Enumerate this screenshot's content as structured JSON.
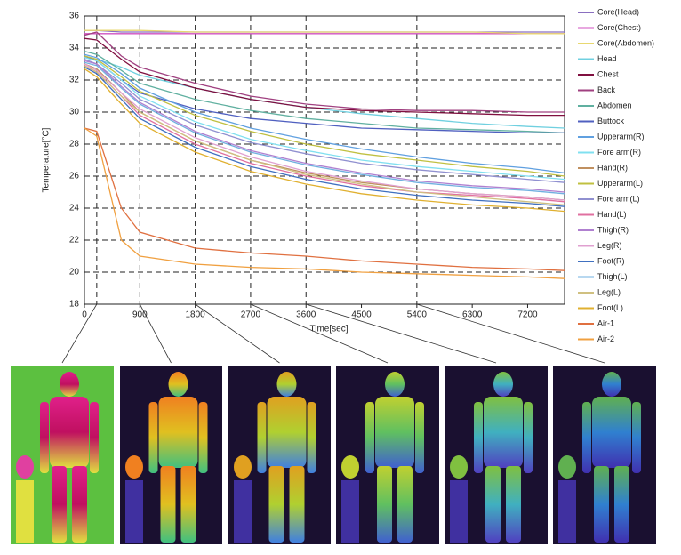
{
  "chart_data": {
    "type": "line",
    "ylabel": "Temperature[°C]",
    "xlabel": "Time[sec]",
    "xlim": [
      0,
      7800
    ],
    "xticks": [
      0,
      900,
      1800,
      2700,
      3600,
      4500,
      5400,
      6300,
      7200
    ],
    "ylim": [
      18,
      36
    ],
    "yticks": [
      18,
      20,
      22,
      24,
      26,
      28,
      30,
      32,
      34,
      36
    ],
    "grid": true,
    "legend": "right",
    "snapshot_x": [
      200,
      900,
      1800,
      2700,
      3600,
      5400
    ],
    "x": [
      0,
      200,
      600,
      900,
      1800,
      2700,
      3600,
      4500,
      5400,
      6300,
      7200,
      7800
    ],
    "series": [
      {
        "name": "Core(Head)",
        "color": "#8a6fc0",
        "values": [
          35.1,
          35.1,
          35.0,
          35.0,
          35.0,
          35.0,
          35.0,
          35.0,
          35.0,
          35.0,
          35.0,
          35.0
        ]
      },
      {
        "name": "Core(Chest)",
        "color": "#d050c0",
        "values": [
          34.9,
          34.9,
          34.9,
          34.9,
          34.9,
          34.9,
          34.9,
          34.9,
          34.9,
          34.9,
          34.9,
          34.9
        ]
      },
      {
        "name": "Core(Abdomen)",
        "color": "#e8d870",
        "values": [
          35.1,
          35.1,
          35.1,
          35.1,
          35.0,
          35.0,
          35.0,
          35.0,
          35.0,
          35.0,
          34.9,
          34.9
        ]
      },
      {
        "name": "Head",
        "color": "#70d0e0",
        "values": [
          33.5,
          33.3,
          32.8,
          32.3,
          31.5,
          30.8,
          30.3,
          29.9,
          29.6,
          29.3,
          29.1,
          29.0
        ]
      },
      {
        "name": "Chest",
        "color": "#801040",
        "values": [
          34.6,
          34.5,
          33.3,
          32.5,
          31.5,
          30.8,
          30.3,
          30.1,
          30.0,
          29.9,
          29.8,
          29.8
        ]
      },
      {
        "name": "Back",
        "color": "#a04080",
        "values": [
          34.8,
          35.0,
          33.5,
          32.8,
          31.8,
          31.0,
          30.5,
          30.2,
          30.1,
          30.1,
          30.0,
          30.0
        ]
      },
      {
        "name": "Abdomen",
        "color": "#60b0a0",
        "values": [
          33.8,
          33.6,
          32.6,
          31.8,
          30.8,
          30.1,
          29.6,
          29.3,
          29.0,
          28.9,
          28.8,
          28.7
        ]
      },
      {
        "name": "Buttock",
        "color": "#5060c0",
        "values": [
          33.5,
          33.2,
          32.0,
          31.2,
          30.2,
          29.6,
          29.3,
          29.0,
          28.9,
          28.8,
          28.7,
          28.7
        ]
      },
      {
        "name": "Upperarm(R)",
        "color": "#60a0e0",
        "values": [
          33.6,
          33.4,
          32.4,
          31.5,
          30.0,
          29.0,
          28.3,
          27.7,
          27.2,
          26.8,
          26.5,
          26.2
        ]
      },
      {
        "name": "Fore arm(R)",
        "color": "#80e0f0",
        "values": [
          33.4,
          33.2,
          32.0,
          31.0,
          29.4,
          28.3,
          27.6,
          27.0,
          26.6,
          26.3,
          26.0,
          25.8
        ]
      },
      {
        "name": "Hand(R)",
        "color": "#c09060",
        "values": [
          33.0,
          32.7,
          31.2,
          30.0,
          28.2,
          27.0,
          26.2,
          25.6,
          25.2,
          24.9,
          24.7,
          24.5
        ]
      },
      {
        "name": "Upperarm(L)",
        "color": "#c0c040",
        "values": [
          33.5,
          33.3,
          32.2,
          31.3,
          29.8,
          28.8,
          28.0,
          27.4,
          27.0,
          26.6,
          26.3,
          26.0
        ]
      },
      {
        "name": "Fore arm(L)",
        "color": "#9090d0",
        "values": [
          33.3,
          33.0,
          31.8,
          30.8,
          29.2,
          28.1,
          27.4,
          26.8,
          26.4,
          26.1,
          25.8,
          25.6
        ]
      },
      {
        "name": "Hand(L)",
        "color": "#e070a0",
        "values": [
          32.9,
          32.5,
          31.0,
          29.8,
          28.0,
          26.8,
          26.0,
          25.4,
          25.0,
          24.8,
          24.6,
          24.4
        ]
      },
      {
        "name": "Thigh(R)",
        "color": "#b080d0",
        "values": [
          33.2,
          33.0,
          31.6,
          30.6,
          28.8,
          27.6,
          26.8,
          26.2,
          25.7,
          25.4,
          25.2,
          25.0
        ]
      },
      {
        "name": "Leg(R)",
        "color": "#e0a0d0",
        "values": [
          33.0,
          32.6,
          31.2,
          30.2,
          28.4,
          27.2,
          26.3,
          25.7,
          25.2,
          24.9,
          24.7,
          24.5
        ]
      },
      {
        "name": "Foot(R)",
        "color": "#4070c0",
        "values": [
          32.8,
          32.4,
          30.8,
          29.6,
          27.8,
          26.6,
          25.8,
          25.2,
          24.8,
          24.5,
          24.3,
          24.1
        ]
      },
      {
        "name": "Thigh(L)",
        "color": "#70b0e0",
        "values": [
          33.1,
          32.9,
          31.5,
          30.5,
          28.7,
          27.5,
          26.7,
          26.1,
          25.6,
          25.3,
          25.1,
          24.9
        ]
      },
      {
        "name": "Leg(L)",
        "color": "#d0c080",
        "values": [
          32.9,
          32.5,
          31.0,
          30.0,
          28.2,
          27.0,
          26.1,
          25.5,
          25.0,
          24.7,
          24.4,
          24.2
        ]
      },
      {
        "name": "Foot(L)",
        "color": "#e0b030",
        "values": [
          32.7,
          32.2,
          30.5,
          29.3,
          27.5,
          26.3,
          25.5,
          24.9,
          24.5,
          24.2,
          24.0,
          23.8
        ]
      },
      {
        "name": "Air-1",
        "color": "#e07040",
        "values": [
          29.0,
          28.8,
          24.0,
          22.5,
          21.5,
          21.2,
          21.0,
          20.7,
          20.5,
          20.3,
          20.2,
          20.1
        ]
      },
      {
        "name": "Air-2",
        "color": "#f0a040",
        "values": [
          29.0,
          28.5,
          22.0,
          21.0,
          20.5,
          20.3,
          20.2,
          20.0,
          19.9,
          19.8,
          19.7,
          19.6
        ]
      }
    ]
  }
}
